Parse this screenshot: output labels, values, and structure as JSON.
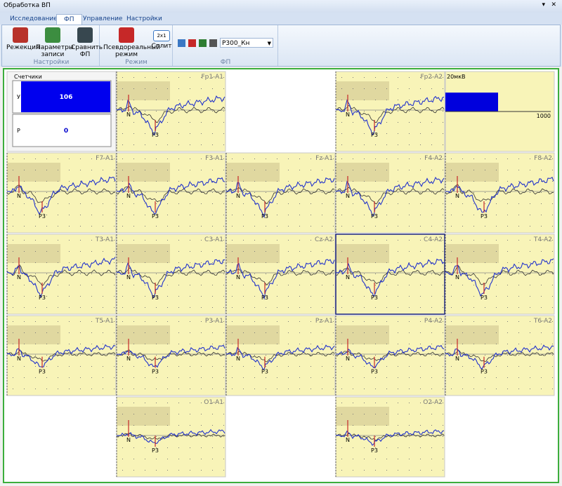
{
  "window": {
    "title": "Обработка ВП"
  },
  "tabs": [
    "Исследование",
    "ФП",
    "Управление",
    "Настройки"
  ],
  "ribbon": {
    "groups": [
      {
        "title": "Настройки",
        "buttons": [
          "Режекция",
          "Параметры записи",
          "Сравнить ФП"
        ]
      },
      {
        "title": "Режим",
        "buttons": [
          "Псевдореальный режим",
          "Сплит"
        ]
      },
      {
        "title": "ФП",
        "buttons": []
      }
    ],
    "split_icon": "2x1",
    "dropdown": "P300_Кн"
  },
  "counters": {
    "title": "Счетчики",
    "rows": [
      {
        "label": "У",
        "value": 106
      },
      {
        "label": "Р",
        "value": 0
      }
    ]
  },
  "scale": {
    "label": "20мкВ",
    "max": 1000
  },
  "markers": [
    "N",
    "P3"
  ],
  "leads": [
    [
      null,
      "Fp1-A1",
      null,
      "Fp2-A2",
      null
    ],
    [
      "F7-A1",
      "F3-A1",
      "Fz-A1",
      "F4-A2",
      "F8-A2"
    ],
    [
      "T3-A1",
      "C3-A1",
      "Cz-A2",
      "C4-A2",
      "T4-A2"
    ],
    [
      "T5-A1",
      "P3-A1",
      "Pz-A1",
      "P4-A2",
      "T6-A2"
    ],
    [
      null,
      "O1-A1",
      null,
      "O2-A2",
      null
    ]
  ]
}
